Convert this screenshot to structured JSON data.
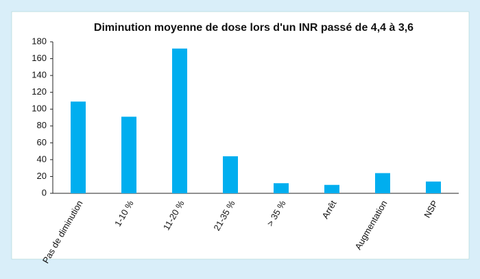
{
  "chart_data": {
    "type": "bar",
    "title": "Diminution moyenne de dose lors d'un INR passé de 4,4 à 3,6",
    "categories": [
      "Pas de diminution",
      "1-10 %",
      "11-20 %",
      "21-35 %",
      "> 35 %",
      "Arrêt",
      "Augmentation",
      "NSP"
    ],
    "values": [
      109,
      91,
      172,
      44,
      12,
      10,
      24,
      14
    ],
    "color": "#00aeef",
    "ylim": [
      0,
      180
    ],
    "yticks": [
      0,
      20,
      40,
      60,
      80,
      100,
      120,
      140,
      160,
      180
    ],
    "grid": false
  }
}
